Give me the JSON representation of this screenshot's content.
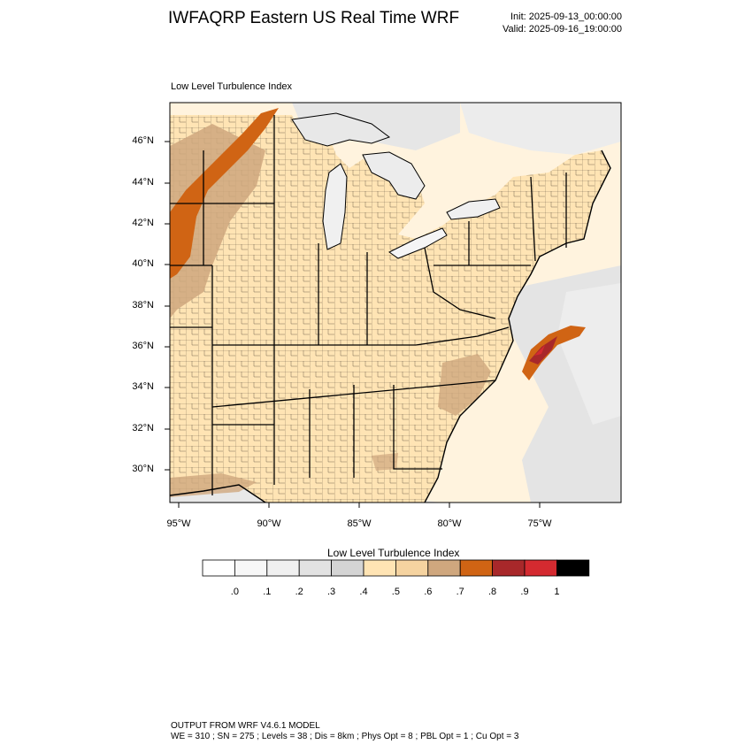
{
  "header": {
    "title": "IWFAQRP Eastern US Real Time WRF",
    "init": "Init: 2025-09-13_00:00:00",
    "valid": "Valid: 2025-09-16_19:00:00"
  },
  "map": {
    "panel_title": "Low Level Turbulence Index",
    "lat_labels": [
      "46°N",
      "44°N",
      "42°N",
      "40°N",
      "38°N",
      "36°N",
      "34°N",
      "32°N",
      "30°N"
    ],
    "lon_labels": [
      "95°W",
      "90°W",
      "85°W",
      "80°W",
      "75°W"
    ]
  },
  "colorbar": {
    "title": "Low Level Turbulence Index",
    "labels": [
      ".0",
      ".1",
      ".2",
      ".3",
      ".4",
      ".5",
      ".6",
      ".7",
      ".8",
      ".9",
      "1"
    ],
    "colors": [
      "#ffffff",
      "#f7f7f7",
      "#f0f0f0",
      "#e2e2e2",
      "#d4d4d4",
      "#ffe4b4",
      "#f5d3a0",
      "#cfa77e",
      "#d06414",
      "#a8282a",
      "#d42a30",
      "#000000"
    ]
  },
  "footer": {
    "line1": "OUTPUT FROM WRF V4.6.1 MODEL",
    "line2": "WE = 310 ; SN = 275 ; Levels = 38 ; Dis = 8km ; Phys Opt = 8 ; PBL Opt = 1 ; Cu Opt = 3"
  }
}
